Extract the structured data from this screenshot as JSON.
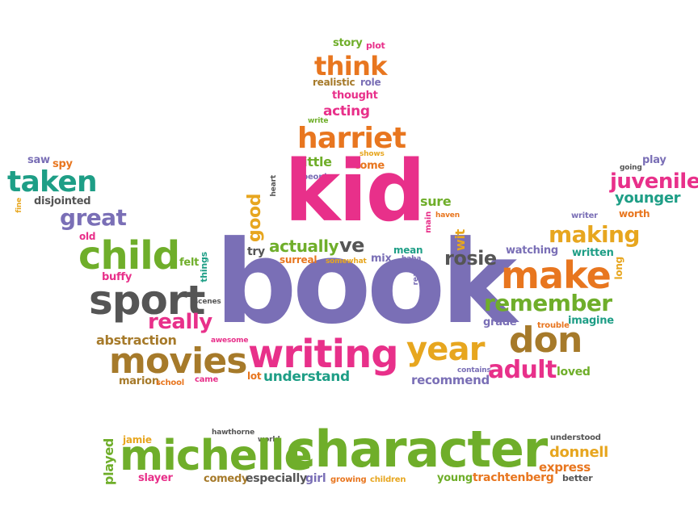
{
  "colors": {
    "pink": "#e8308a",
    "purple": "#7a6fb6",
    "green": "#6fae2a",
    "orange": "#e8761f",
    "gray": "#555555",
    "teal": "#1e9e86",
    "gold": "#e7a61f",
    "brown": "#a67a2a"
  },
  "words": [
    {
      "text": "book",
      "color": "purple"
    },
    {
      "text": "kid",
      "color": "pink"
    },
    {
      "text": "character",
      "color": "green"
    },
    {
      "text": "michelle",
      "color": "green"
    },
    {
      "text": "writing",
      "color": "pink"
    },
    {
      "text": "movies",
      "color": "brown"
    },
    {
      "text": "child",
      "color": "green"
    },
    {
      "text": "sport",
      "color": "gray"
    },
    {
      "text": "make",
      "color": "orange"
    },
    {
      "text": "year",
      "color": "gold"
    },
    {
      "text": "don",
      "color": "brown"
    },
    {
      "text": "harriet",
      "color": "orange"
    },
    {
      "text": "taken",
      "color": "teal"
    },
    {
      "text": "think",
      "color": "orange"
    },
    {
      "text": "making",
      "color": "gold"
    },
    {
      "text": "adult",
      "color": "pink"
    },
    {
      "text": "remember",
      "color": "green"
    },
    {
      "text": "great",
      "color": "purple"
    },
    {
      "text": "juvenile",
      "color": "pink"
    },
    {
      "text": "rosie",
      "color": "gray"
    },
    {
      "text": "really",
      "color": "pink"
    },
    {
      "text": "ve",
      "color": "gray"
    },
    {
      "text": "actually",
      "color": "green"
    },
    {
      "text": "good",
      "color": "gold"
    },
    {
      "text": "donnell",
      "color": "gold"
    },
    {
      "text": "younger",
      "color": "teal"
    },
    {
      "text": "understand",
      "color": "teal"
    },
    {
      "text": "abstraction",
      "color": "brown"
    },
    {
      "text": "express",
      "color": "orange"
    },
    {
      "text": "recommend",
      "color": "purple"
    },
    {
      "text": "trachtenberg",
      "color": "orange"
    },
    {
      "text": "played",
      "color": "green"
    },
    {
      "text": "especially",
      "color": "gray"
    },
    {
      "text": "comedy",
      "color": "brown"
    },
    {
      "text": "slayer",
      "color": "pink"
    },
    {
      "text": "young",
      "color": "green"
    },
    {
      "text": "girl",
      "color": "purple"
    },
    {
      "text": "acting",
      "color": "pink"
    },
    {
      "text": "little",
      "color": "green"
    },
    {
      "text": "come",
      "color": "orange"
    },
    {
      "text": "sure",
      "color": "green"
    },
    {
      "text": "wit",
      "color": "gold"
    },
    {
      "text": "mean",
      "color": "teal"
    },
    {
      "text": "watching",
      "color": "purple"
    },
    {
      "text": "written",
      "color": "teal"
    },
    {
      "text": "imagine",
      "color": "teal"
    },
    {
      "text": "grade",
      "color": "purple"
    },
    {
      "text": "loved",
      "color": "green"
    },
    {
      "text": "marion",
      "color": "brown"
    },
    {
      "text": "buffy",
      "color": "pink"
    },
    {
      "text": "felt",
      "color": "green"
    },
    {
      "text": "try",
      "color": "gray"
    },
    {
      "text": "surreal",
      "color": "orange"
    },
    {
      "text": "mix",
      "color": "purple"
    },
    {
      "text": "disjointed",
      "color": "gray"
    },
    {
      "text": "realistic",
      "color": "brown"
    },
    {
      "text": "role",
      "color": "purple"
    },
    {
      "text": "thought",
      "color": "pink"
    },
    {
      "text": "story",
      "color": "green"
    },
    {
      "text": "plot",
      "color": "pink"
    },
    {
      "text": "write",
      "color": "green"
    },
    {
      "text": "saw",
      "color": "purple"
    },
    {
      "text": "spy",
      "color": "orange"
    },
    {
      "text": "old",
      "color": "pink"
    },
    {
      "text": "fine",
      "color": "gold"
    },
    {
      "text": "people",
      "color": "purple"
    },
    {
      "text": "heart",
      "color": "gray"
    },
    {
      "text": "shows",
      "color": "gold"
    },
    {
      "text": "haven",
      "color": "orange"
    },
    {
      "text": "main",
      "color": "pink"
    },
    {
      "text": "haha",
      "color": "purple"
    },
    {
      "text": "read",
      "color": "purple"
    },
    {
      "text": "somewhat",
      "color": "gold"
    },
    {
      "text": "things",
      "color": "teal"
    },
    {
      "text": "scenes",
      "color": "gray"
    },
    {
      "text": "awesome",
      "color": "pink"
    },
    {
      "text": "lot",
      "color": "orange"
    },
    {
      "text": "came",
      "color": "pink"
    },
    {
      "text": "school",
      "color": "orange"
    },
    {
      "text": "contains",
      "color": "purple"
    },
    {
      "text": "trouble",
      "color": "orange"
    },
    {
      "text": "play",
      "color": "purple"
    },
    {
      "text": "going",
      "color": "gray"
    },
    {
      "text": "writer",
      "color": "purple"
    },
    {
      "text": "worth",
      "color": "orange"
    },
    {
      "text": "long",
      "color": "gold"
    },
    {
      "text": "jamie",
      "color": "gold"
    },
    {
      "text": "hawthorne",
      "color": "gray"
    },
    {
      "text": "world",
      "color": "gray"
    },
    {
      "text": "growing",
      "color": "orange"
    },
    {
      "text": "children",
      "color": "gold"
    },
    {
      "text": "understood",
      "color": "gray"
    },
    {
      "text": "better",
      "color": "gray"
    }
  ]
}
